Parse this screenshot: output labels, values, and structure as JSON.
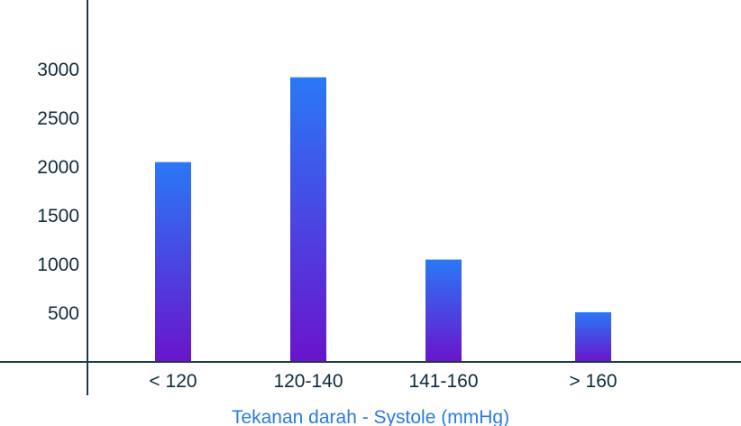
{
  "colors": {
    "bar_top": "#2a78f6",
    "bar_bottom": "#6a14cc",
    "axis": "#1f3b46",
    "text": "#0f2b3a",
    "xlabel": "#2a7be4"
  },
  "chart_data": {
    "type": "bar",
    "categories": [
      "< 120",
      "120-140",
      "141-160",
      "> 160"
    ],
    "values": [
      2050,
      2920,
      1050,
      510
    ],
    "xlabel": "Tekanan darah - Systole (mmHg)",
    "ylabel": "",
    "ylim": [
      0,
      3500
    ],
    "yticks": [
      500,
      1000,
      1500,
      2000,
      2500,
      3000
    ],
    "grid": false,
    "legend": "none"
  }
}
